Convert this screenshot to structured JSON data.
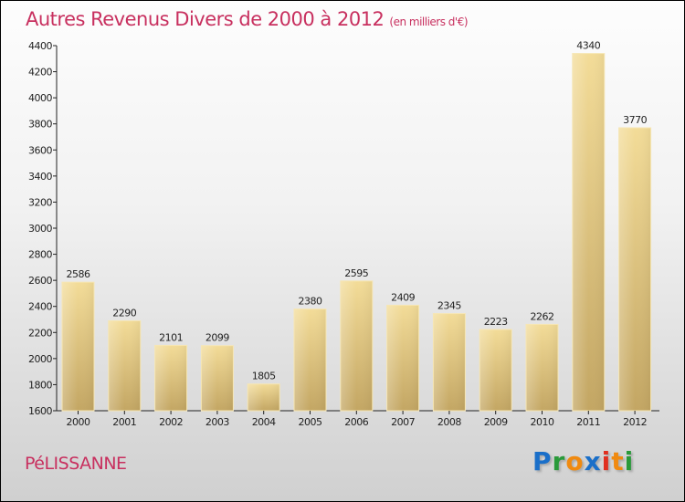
{
  "chart_data": {
    "type": "bar",
    "title": "Autres Revenus Divers de 2000 à 2012",
    "subtitle": "(en milliers d'€)",
    "categories": [
      "2000",
      "2001",
      "2002",
      "2003",
      "2004",
      "2005",
      "2006",
      "2007",
      "2008",
      "2009",
      "2010",
      "2011",
      "2012"
    ],
    "values": [
      2586,
      2290,
      2101,
      2099,
      1805,
      2380,
      2595,
      2409,
      2345,
      2223,
      2262,
      4340,
      3770
    ],
    "ylim": [
      1600,
      4400
    ],
    "yticks": [
      1600,
      1800,
      2000,
      2200,
      2400,
      2600,
      2800,
      3000,
      3200,
      3400,
      3600,
      3800,
      4000,
      4200,
      4400
    ],
    "xlabel": "",
    "ylabel": "",
    "grid": false
  },
  "city": "PéLISSANNE",
  "logo": {
    "text": "Proxiti",
    "letters": [
      "P",
      "r",
      "o",
      "x",
      "i",
      "t",
      "i"
    ],
    "colors": [
      "#1a6fc9",
      "#2a9a3a",
      "#f08a10",
      "#1a6fc9",
      "#e03020",
      "#f08a10",
      "#2a9a3a"
    ]
  }
}
